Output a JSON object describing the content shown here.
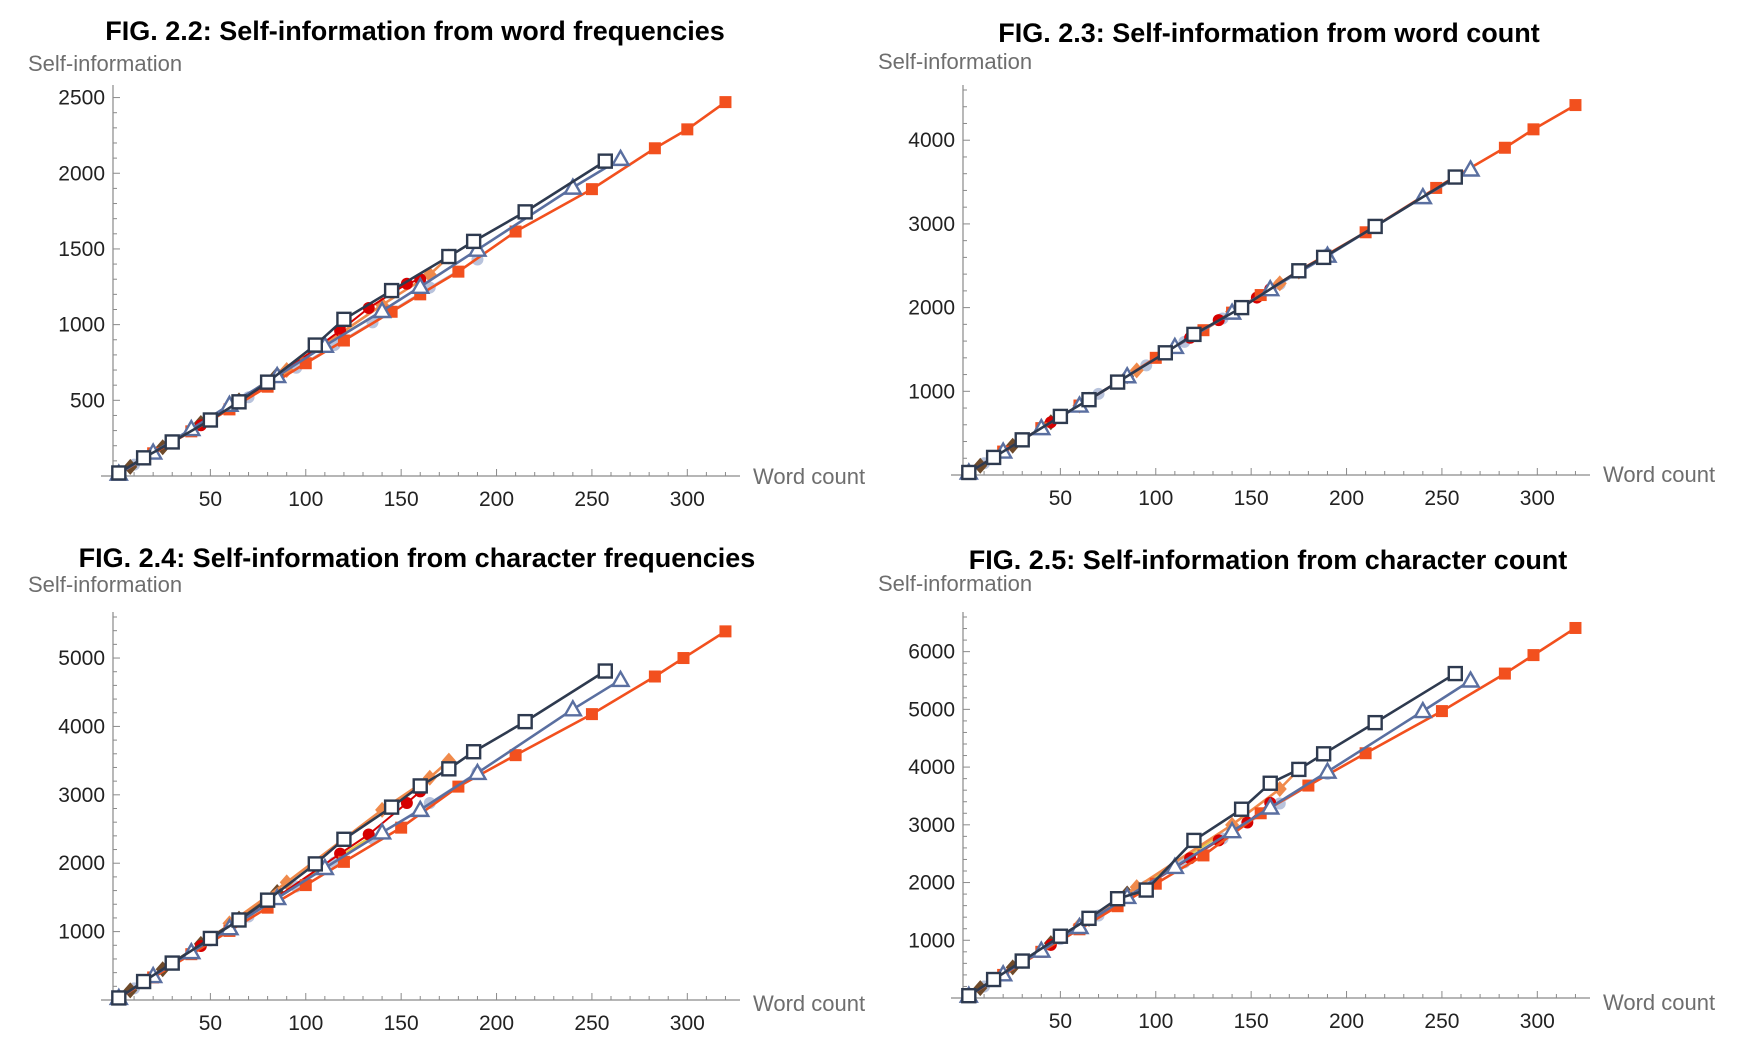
{
  "chart_data": [
    {
      "type": "line",
      "title": "FIG. 2.2: Self-information from word frequencies",
      "xlabel": "Word count",
      "ylabel": "Self-information",
      "xlim": [
        0,
        325
      ],
      "ylim": [
        0,
        2550
      ],
      "xticks": [
        50,
        100,
        150,
        200,
        250,
        300
      ],
      "yticks": [
        500,
        1000,
        1500,
        2000,
        2500
      ],
      "series": [
        {
          "name": "orange-filled-squares",
          "color": "#f2501e",
          "marker": "square-filled",
          "x": [
            2,
            20,
            40,
            60,
            80,
            100,
            120,
            145,
            160,
            180,
            210,
            250,
            283,
            300,
            320
          ],
          "y": [
            15,
            150,
            295,
            440,
            590,
            745,
            895,
            1085,
            1200,
            1350,
            1615,
            1895,
            2165,
            2290,
            2470
          ]
        },
        {
          "name": "dark-open-squares",
          "color": "#2e3a4f",
          "marker": "square-open",
          "x": [
            2,
            15,
            30,
            50,
            65,
            80,
            105,
            120,
            145,
            175,
            188,
            215,
            257
          ],
          "y": [
            20,
            120,
            225,
            370,
            490,
            620,
            865,
            1035,
            1225,
            1450,
            1550,
            1745,
            2080
          ]
        },
        {
          "name": "blue-open-triangles",
          "color": "#5a6fa0",
          "marker": "triangle-open",
          "x": [
            2,
            20,
            40,
            60,
            85,
            110,
            140,
            160,
            190,
            240,
            265
          ],
          "y": [
            15,
            155,
            310,
            470,
            660,
            860,
            1090,
            1250,
            1495,
            1905,
            2095
          ]
        },
        {
          "name": "light-blue-dots",
          "color": "#b8c3dc",
          "marker": "circle",
          "x": [
            10,
            30,
            50,
            70,
            95,
            115,
            135,
            165,
            190
          ],
          "y": [
            75,
            220,
            370,
            520,
            715,
            865,
            1015,
            1245,
            1430
          ]
        },
        {
          "name": "red-dots",
          "color": "#d60000",
          "marker": "circle",
          "x": [
            15,
            45,
            80,
            118,
            133,
            153,
            160
          ],
          "y": [
            115,
            335,
            610,
            960,
            1110,
            1270,
            1300
          ]
        },
        {
          "name": "brown-diamonds",
          "color": "#6e4a2a",
          "marker": "diamond",
          "x": [
            8,
            25,
            45,
            65,
            85
          ],
          "y": [
            60,
            190,
            350,
            500,
            670
          ]
        },
        {
          "name": "orange-diamonds",
          "color": "#f08a4b",
          "marker": "diamond",
          "x": [
            60,
            90,
            140,
            165,
            175
          ],
          "y": [
            460,
            700,
            1130,
            1330,
            1450
          ]
        },
        {
          "name": "yellow-line",
          "color": "#e8c84a",
          "marker": "none",
          "x": [
            90,
            135
          ],
          "y": [
            720,
            1050
          ]
        }
      ]
    },
    {
      "type": "line",
      "title": "FIG. 2.3: Self-information from word count",
      "xlabel": "Word count",
      "ylabel": "Self-information",
      "xlim": [
        0,
        325
      ],
      "ylim": [
        0,
        4600
      ],
      "xticks": [
        50,
        100,
        150,
        200,
        250,
        300
      ],
      "yticks": [
        1000,
        2000,
        3000,
        4000
      ],
      "series": [
        {
          "name": "orange-filled-squares",
          "color": "#f2501e",
          "marker": "square-filled",
          "x": [
            2,
            20,
            40,
            60,
            80,
            100,
            125,
            140,
            155,
            175,
            210,
            247,
            283,
            298,
            320
          ],
          "y": [
            30,
            280,
            560,
            830,
            1110,
            1400,
            1730,
            1940,
            2150,
            2440,
            2900,
            3430,
            3910,
            4130,
            4420
          ]
        },
        {
          "name": "dark-open-squares",
          "color": "#2e3a4f",
          "marker": "square-open",
          "x": [
            2,
            15,
            30,
            50,
            65,
            80,
            105,
            120,
            145,
            175,
            188,
            215,
            257
          ],
          "y": [
            30,
            210,
            420,
            700,
            900,
            1110,
            1460,
            1680,
            2000,
            2440,
            2600,
            2970,
            3560
          ]
        },
        {
          "name": "blue-open-triangles",
          "color": "#5a6fa0",
          "marker": "triangle-open",
          "x": [
            2,
            20,
            40,
            60,
            85,
            110,
            140,
            160,
            190,
            240,
            265
          ],
          "y": [
            30,
            280,
            560,
            830,
            1180,
            1530,
            1940,
            2220,
            2620,
            3320,
            3650
          ]
        },
        {
          "name": "light-blue-dots",
          "color": "#b8c3dc",
          "marker": "circle",
          "x": [
            10,
            30,
            50,
            70,
            95,
            115,
            135,
            165,
            190
          ],
          "y": [
            140,
            420,
            690,
            970,
            1310,
            1590,
            1870,
            2280,
            2640
          ]
        },
        {
          "name": "red-dots",
          "color": "#d60000",
          "marker": "circle",
          "x": [
            15,
            45,
            80,
            118,
            133,
            153,
            160
          ],
          "y": [
            210,
            630,
            1110,
            1640,
            1850,
            2120,
            2220
          ]
        },
        {
          "name": "brown-diamonds",
          "color": "#6e4a2a",
          "marker": "diamond",
          "x": [
            8,
            25,
            45,
            65,
            85
          ],
          "y": [
            110,
            350,
            630,
            900,
            1180
          ]
        },
        {
          "name": "orange-diamonds",
          "color": "#f08a4b",
          "marker": "diamond",
          "x": [
            60,
            90,
            140,
            165,
            175
          ],
          "y": [
            830,
            1250,
            1950,
            2290,
            2430
          ]
        },
        {
          "name": "yellow-line",
          "color": "#e8c84a",
          "marker": "none",
          "x": [
            90,
            135
          ],
          "y": [
            1250,
            1870
          ]
        }
      ]
    },
    {
      "type": "line",
      "title": "FIG. 2.4: Self-information from character frequencies",
      "xlabel": "Word count",
      "ylabel": "Self-information",
      "xlim": [
        0,
        325
      ],
      "ylim": [
        0,
        5600
      ],
      "xticks": [
        50,
        100,
        150,
        200,
        250,
        300
      ],
      "yticks": [
        1000,
        2000,
        3000,
        4000,
        5000
      ],
      "series": [
        {
          "name": "orange-filled-squares",
          "color": "#f2501e",
          "marker": "square-filled",
          "x": [
            2,
            20,
            40,
            60,
            80,
            100,
            120,
            150,
            180,
            210,
            250,
            283,
            298,
            320
          ],
          "y": [
            30,
            330,
            670,
            1010,
            1350,
            1680,
            2020,
            2520,
            3120,
            3580,
            4180,
            4730,
            5000,
            5390
          ]
        },
        {
          "name": "dark-open-squares",
          "color": "#2e3a4f",
          "marker": "square-open",
          "x": [
            2,
            15,
            30,
            50,
            65,
            80,
            105,
            120,
            145,
            160,
            175,
            188,
            215,
            257
          ],
          "y": [
            30,
            270,
            540,
            900,
            1170,
            1460,
            1990,
            2350,
            2820,
            3130,
            3380,
            3630,
            4070,
            4810
          ]
        },
        {
          "name": "blue-open-triangles",
          "color": "#5a6fa0",
          "marker": "triangle-open",
          "x": [
            2,
            20,
            40,
            60,
            85,
            110,
            140,
            160,
            190,
            240,
            265
          ],
          "y": [
            30,
            350,
            700,
            1050,
            1490,
            1930,
            2450,
            2780,
            3320,
            4250,
            4680
          ]
        },
        {
          "name": "light-blue-dots",
          "color": "#b8c3dc",
          "marker": "circle",
          "x": [
            10,
            30,
            50,
            70,
            95,
            115,
            135,
            165,
            190
          ],
          "y": [
            170,
            520,
            870,
            1220,
            1660,
            2010,
            2360,
            2880,
            3330
          ]
        },
        {
          "name": "red-dots",
          "color": "#d60000",
          "marker": "circle",
          "x": [
            15,
            45,
            80,
            118,
            133,
            153,
            160
          ],
          "y": [
            260,
            790,
            1410,
            2140,
            2420,
            2880,
            3050
          ]
        },
        {
          "name": "brown-diamonds",
          "color": "#6e4a2a",
          "marker": "diamond",
          "x": [
            8,
            25,
            45,
            65,
            85
          ],
          "y": [
            140,
            450,
            820,
            1190,
            1580
          ]
        },
        {
          "name": "orange-diamonds",
          "color": "#f08a4b",
          "marker": "diamond",
          "x": [
            60,
            90,
            140,
            165,
            175
          ],
          "y": [
            1120,
            1720,
            2780,
            3250,
            3500
          ]
        },
        {
          "name": "yellow-line",
          "color": "#e8c84a",
          "marker": "none",
          "x": [
            90,
            135
          ],
          "y": [
            1600,
            2400
          ]
        }
      ]
    },
    {
      "type": "line",
      "title": "FIG. 2.5: Self-information from character count",
      "xlabel": "Word count",
      "ylabel": "Self-information",
      "xlim": [
        0,
        325
      ],
      "ylim": [
        0,
        6600
      ],
      "xticks": [
        50,
        100,
        150,
        200,
        250,
        300
      ],
      "yticks": [
        1000,
        2000,
        3000,
        4000,
        5000,
        6000
      ],
      "series": [
        {
          "name": "orange-filled-squares",
          "color": "#f2501e",
          "marker": "square-filled",
          "x": [
            2,
            20,
            40,
            60,
            80,
            100,
            125,
            155,
            180,
            210,
            250,
            283,
            298,
            320
          ],
          "y": [
            40,
            400,
            800,
            1190,
            1590,
            1980,
            2470,
            3200,
            3680,
            4240,
            4970,
            5620,
            5940,
            6410
          ]
        },
        {
          "name": "dark-open-squares",
          "color": "#2e3a4f",
          "marker": "square-open",
          "x": [
            2,
            15,
            30,
            50,
            65,
            80,
            95,
            120,
            145,
            160,
            175,
            188,
            215,
            257
          ],
          "y": [
            40,
            320,
            640,
            1070,
            1380,
            1720,
            1870,
            2730,
            3270,
            3720,
            3960,
            4230,
            4770,
            5620
          ]
        },
        {
          "name": "blue-open-triangles",
          "color": "#5a6fa0",
          "marker": "triangle-open",
          "x": [
            2,
            20,
            40,
            60,
            85,
            110,
            140,
            160,
            190,
            240,
            265
          ],
          "y": [
            40,
            410,
            820,
            1230,
            1750,
            2270,
            2890,
            3300,
            3920,
            4970,
            5500
          ]
        },
        {
          "name": "light-blue-dots",
          "color": "#b8c3dc",
          "marker": "circle",
          "x": [
            10,
            30,
            50,
            70,
            95,
            115,
            135,
            165,
            190
          ],
          "y": [
            200,
            610,
            1020,
            1430,
            1940,
            2350,
            2760,
            3370,
            3880
          ]
        },
        {
          "name": "red-dots",
          "color": "#d60000",
          "marker": "circle",
          "x": [
            15,
            45,
            80,
            118,
            133,
            148,
            160
          ],
          "y": [
            300,
            920,
            1640,
            2420,
            2730,
            3040,
            3380
          ]
        },
        {
          "name": "brown-diamonds",
          "color": "#6e4a2a",
          "marker": "diamond",
          "x": [
            8,
            25,
            45,
            65,
            85
          ],
          "y": [
            170,
            530,
            950,
            1370,
            1810
          ]
        },
        {
          "name": "orange-diamonds",
          "color": "#f08a4b",
          "marker": "diamond",
          "x": [
            60,
            90,
            140,
            165,
            175
          ],
          "y": [
            1260,
            1920,
            3000,
            3620,
            3960
          ]
        },
        {
          "name": "yellow-line",
          "color": "#e8c84a",
          "marker": "none",
          "x": [
            90,
            135
          ],
          "y": [
            1900,
            2850
          ]
        }
      ]
    }
  ]
}
